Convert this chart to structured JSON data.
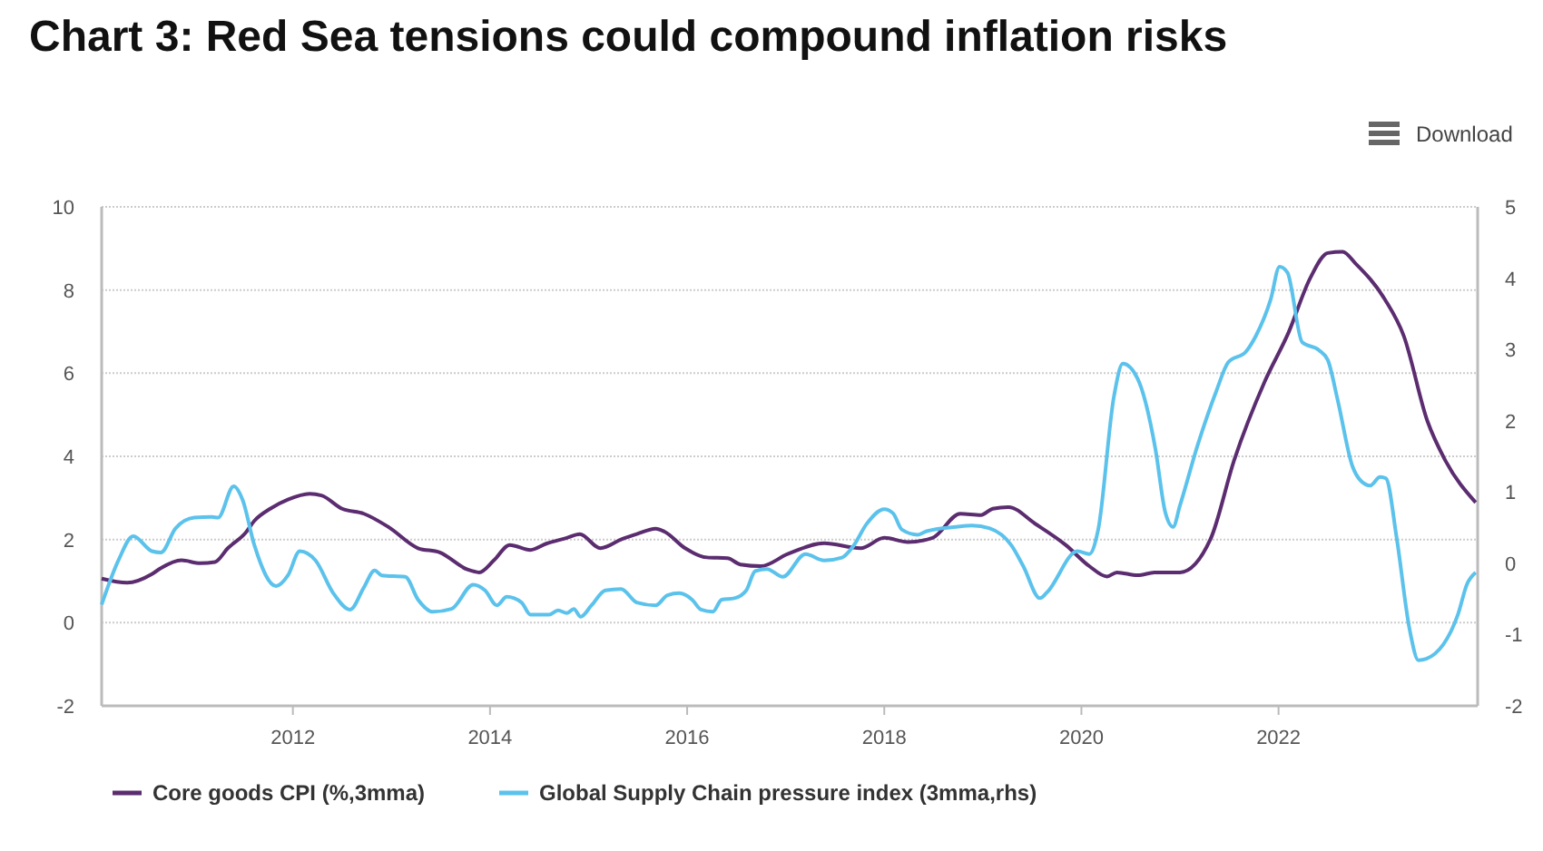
{
  "chart_data": {
    "type": "line",
    "title": "Chart 3: Red Sea tensions could compound inflation risks",
    "annotations": [
      "Download"
    ],
    "xlim": [
      2010.06,
      2024.02
    ],
    "xticks": [
      2012,
      2014,
      2016,
      2018,
      2020,
      2022
    ],
    "ylim": [
      -2,
      10
    ],
    "yticks": [
      -2,
      0,
      2,
      4,
      6,
      8,
      10
    ],
    "y2lim": [
      -2,
      5
    ],
    "y2ticks": [
      -2,
      -1,
      0,
      1,
      2,
      3,
      4,
      5
    ],
    "grid": "y",
    "legend": "bottom",
    "marker": "none",
    "line_style": "solid",
    "series": [
      {
        "name": "Core goods CPI (%,3mma)",
        "color": "#5b2c6f",
        "x": [
          2010.06,
          2010.32,
          2010.57,
          2010.66,
          2010.87,
          2011.06,
          2011.21,
          2011.34,
          2011.52,
          2011.61,
          2011.77,
          2011.95,
          2012.17,
          2012.29,
          2012.5,
          2012.72,
          2012.97,
          2013.27,
          2013.49,
          2013.77,
          2013.89,
          2014.04,
          2014.2,
          2014.41,
          2014.57,
          2014.78,
          2014.91,
          2015.12,
          2015.34,
          2015.49,
          2015.68,
          2015.77,
          2015.98,
          2016.2,
          2016.41,
          2016.54,
          2016.75,
          2017.02,
          2017.39,
          2017.76,
          2018.0,
          2018.24,
          2018.49,
          2018.77,
          2018.98,
          2019.1,
          2019.26,
          2019.53,
          2019.84,
          2020.08,
          2020.26,
          2020.36,
          2020.57,
          2020.75,
          2021.0,
          2021.31,
          2021.55,
          2021.86,
          2022.1,
          2022.32,
          2022.5,
          2022.65,
          2022.78,
          2023.08,
          2023.27,
          2023.51,
          2023.69,
          2024.0
        ],
        "values": [
          1.06,
          0.96,
          1.17,
          1.31,
          1.5,
          1.43,
          1.46,
          1.79,
          2.16,
          2.45,
          2.74,
          2.96,
          3.1,
          3.06,
          2.74,
          2.62,
          2.3,
          1.79,
          1.69,
          1.28,
          1.21,
          1.5,
          1.87,
          1.75,
          1.9,
          2.04,
          2.13,
          1.79,
          2.01,
          2.13,
          2.26,
          2.19,
          1.79,
          1.57,
          1.55,
          1.4,
          1.36,
          1.65,
          1.91,
          1.79,
          2.04,
          1.94,
          2.04,
          2.62,
          2.59,
          2.74,
          2.78,
          2.38,
          1.87,
          1.36,
          1.11,
          1.21,
          1.14,
          1.21,
          1.21,
          2.01,
          3.91,
          5.8,
          6.97,
          8.28,
          8.89,
          8.92,
          8.64,
          7.77,
          6.9,
          4.85,
          3.91,
          2.89
        ]
      },
      {
        "name": "Global Supply Chain pressure index (3mma,rhs)",
        "color": "#5bc2ec",
        "axis": "y2",
        "x": [
          2010.06,
          2010.23,
          2010.38,
          2010.57,
          2010.66,
          2010.81,
          2011.0,
          2011.18,
          2011.24,
          2011.4,
          2011.49,
          2011.61,
          2011.83,
          2011.95,
          2012.07,
          2012.23,
          2012.41,
          2012.58,
          2012.72,
          2012.83,
          2012.9,
          2013.14,
          2013.27,
          2013.42,
          2013.61,
          2013.83,
          2013.95,
          2014.07,
          2014.17,
          2014.32,
          2014.41,
          2014.6,
          2014.69,
          2014.78,
          2014.85,
          2014.92,
          2015.03,
          2015.17,
          2015.33,
          2015.49,
          2015.68,
          2015.8,
          2015.92,
          2016.05,
          2016.14,
          2016.26,
          2016.35,
          2016.48,
          2016.6,
          2016.69,
          2016.81,
          2016.97,
          2017.2,
          2017.39,
          2017.57,
          2017.69,
          2017.82,
          2018.0,
          2018.09,
          2018.18,
          2018.34,
          2018.43,
          2018.73,
          2018.89,
          2019.07,
          2019.29,
          2019.41,
          2019.58,
          2019.65,
          2019.96,
          2020.08,
          2020.17,
          2020.33,
          2020.42,
          2020.57,
          2020.75,
          2020.85,
          2020.93,
          2021.0,
          2021.18,
          2021.37,
          2021.49,
          2021.67,
          2021.77,
          2021.92,
          2022.01,
          2022.09,
          2022.24,
          2022.41,
          2022.5,
          2022.6,
          2022.75,
          2022.84,
          2022.93,
          2023.03,
          2023.09,
          2023.2,
          2023.33,
          2023.42,
          2023.5,
          2023.82,
          2023.91,
          2024.0
        ],
        "values": [
          -0.58,
          0.04,
          0.38,
          0.17,
          0.15,
          0.49,
          0.64,
          0.65,
          0.64,
          1.08,
          0.89,
          0.25,
          -0.32,
          -0.17,
          0.17,
          0.04,
          -0.42,
          -0.65,
          -0.34,
          -0.1,
          -0.17,
          -0.19,
          -0.51,
          -0.68,
          -0.64,
          -0.3,
          -0.38,
          -0.59,
          -0.47,
          -0.55,
          -0.72,
          -0.72,
          -0.66,
          -0.7,
          -0.64,
          -0.75,
          -0.59,
          -0.38,
          -0.36,
          -0.55,
          -0.59,
          -0.45,
          -0.42,
          -0.51,
          -0.65,
          -0.68,
          -0.51,
          -0.49,
          -0.38,
          -0.11,
          -0.08,
          -0.19,
          0.13,
          0.04,
          0.08,
          0.25,
          0.55,
          0.76,
          0.7,
          0.47,
          0.4,
          0.45,
          0.51,
          0.53,
          0.49,
          0.25,
          -0.04,
          -0.49,
          -0.41,
          0.17,
          0.13,
          0.47,
          2.34,
          2.8,
          2.59,
          1.61,
          0.72,
          0.51,
          0.81,
          1.66,
          2.42,
          2.82,
          2.97,
          3.19,
          3.7,
          4.16,
          4.08,
          3.1,
          2.99,
          2.85,
          2.29,
          1.36,
          1.15,
          1.09,
          1.21,
          1.19,
          0.34,
          -0.93,
          -1.36,
          -1.34,
          -0.72,
          -0.3,
          -0.13
        ]
      }
    ]
  }
}
